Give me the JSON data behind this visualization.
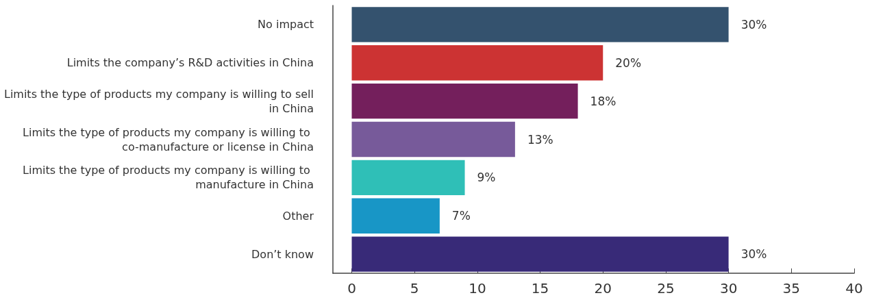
{
  "chart_data": {
    "type": "bar",
    "orientation": "horizontal",
    "categories": [
      "No impact",
      "Limits the company’s R&D activities in China",
      "Limits the type of products my company is willing to sell in China",
      "Limits the type of products my company is willing to co-manufacture or license in China",
      "Limits the type of products my company is willing to manufacture in China",
      "Other",
      "Don’t know"
    ],
    "values": [
      30,
      20,
      18,
      13,
      9,
      7,
      30
    ],
    "colors": [
      "#34526e",
      "#cc3333",
      "#741f5c",
      "#775a9a",
      "#2fbfb7",
      "#1896c6",
      "#382a78"
    ],
    "value_labels": [
      "30%",
      "20%",
      "18%",
      "13%",
      "9%",
      "7%",
      "30%"
    ],
    "xlim": [
      -1.5,
      40
    ],
    "xticks": [
      0,
      5,
      10,
      15,
      20,
      25,
      30,
      35,
      40
    ]
  }
}
